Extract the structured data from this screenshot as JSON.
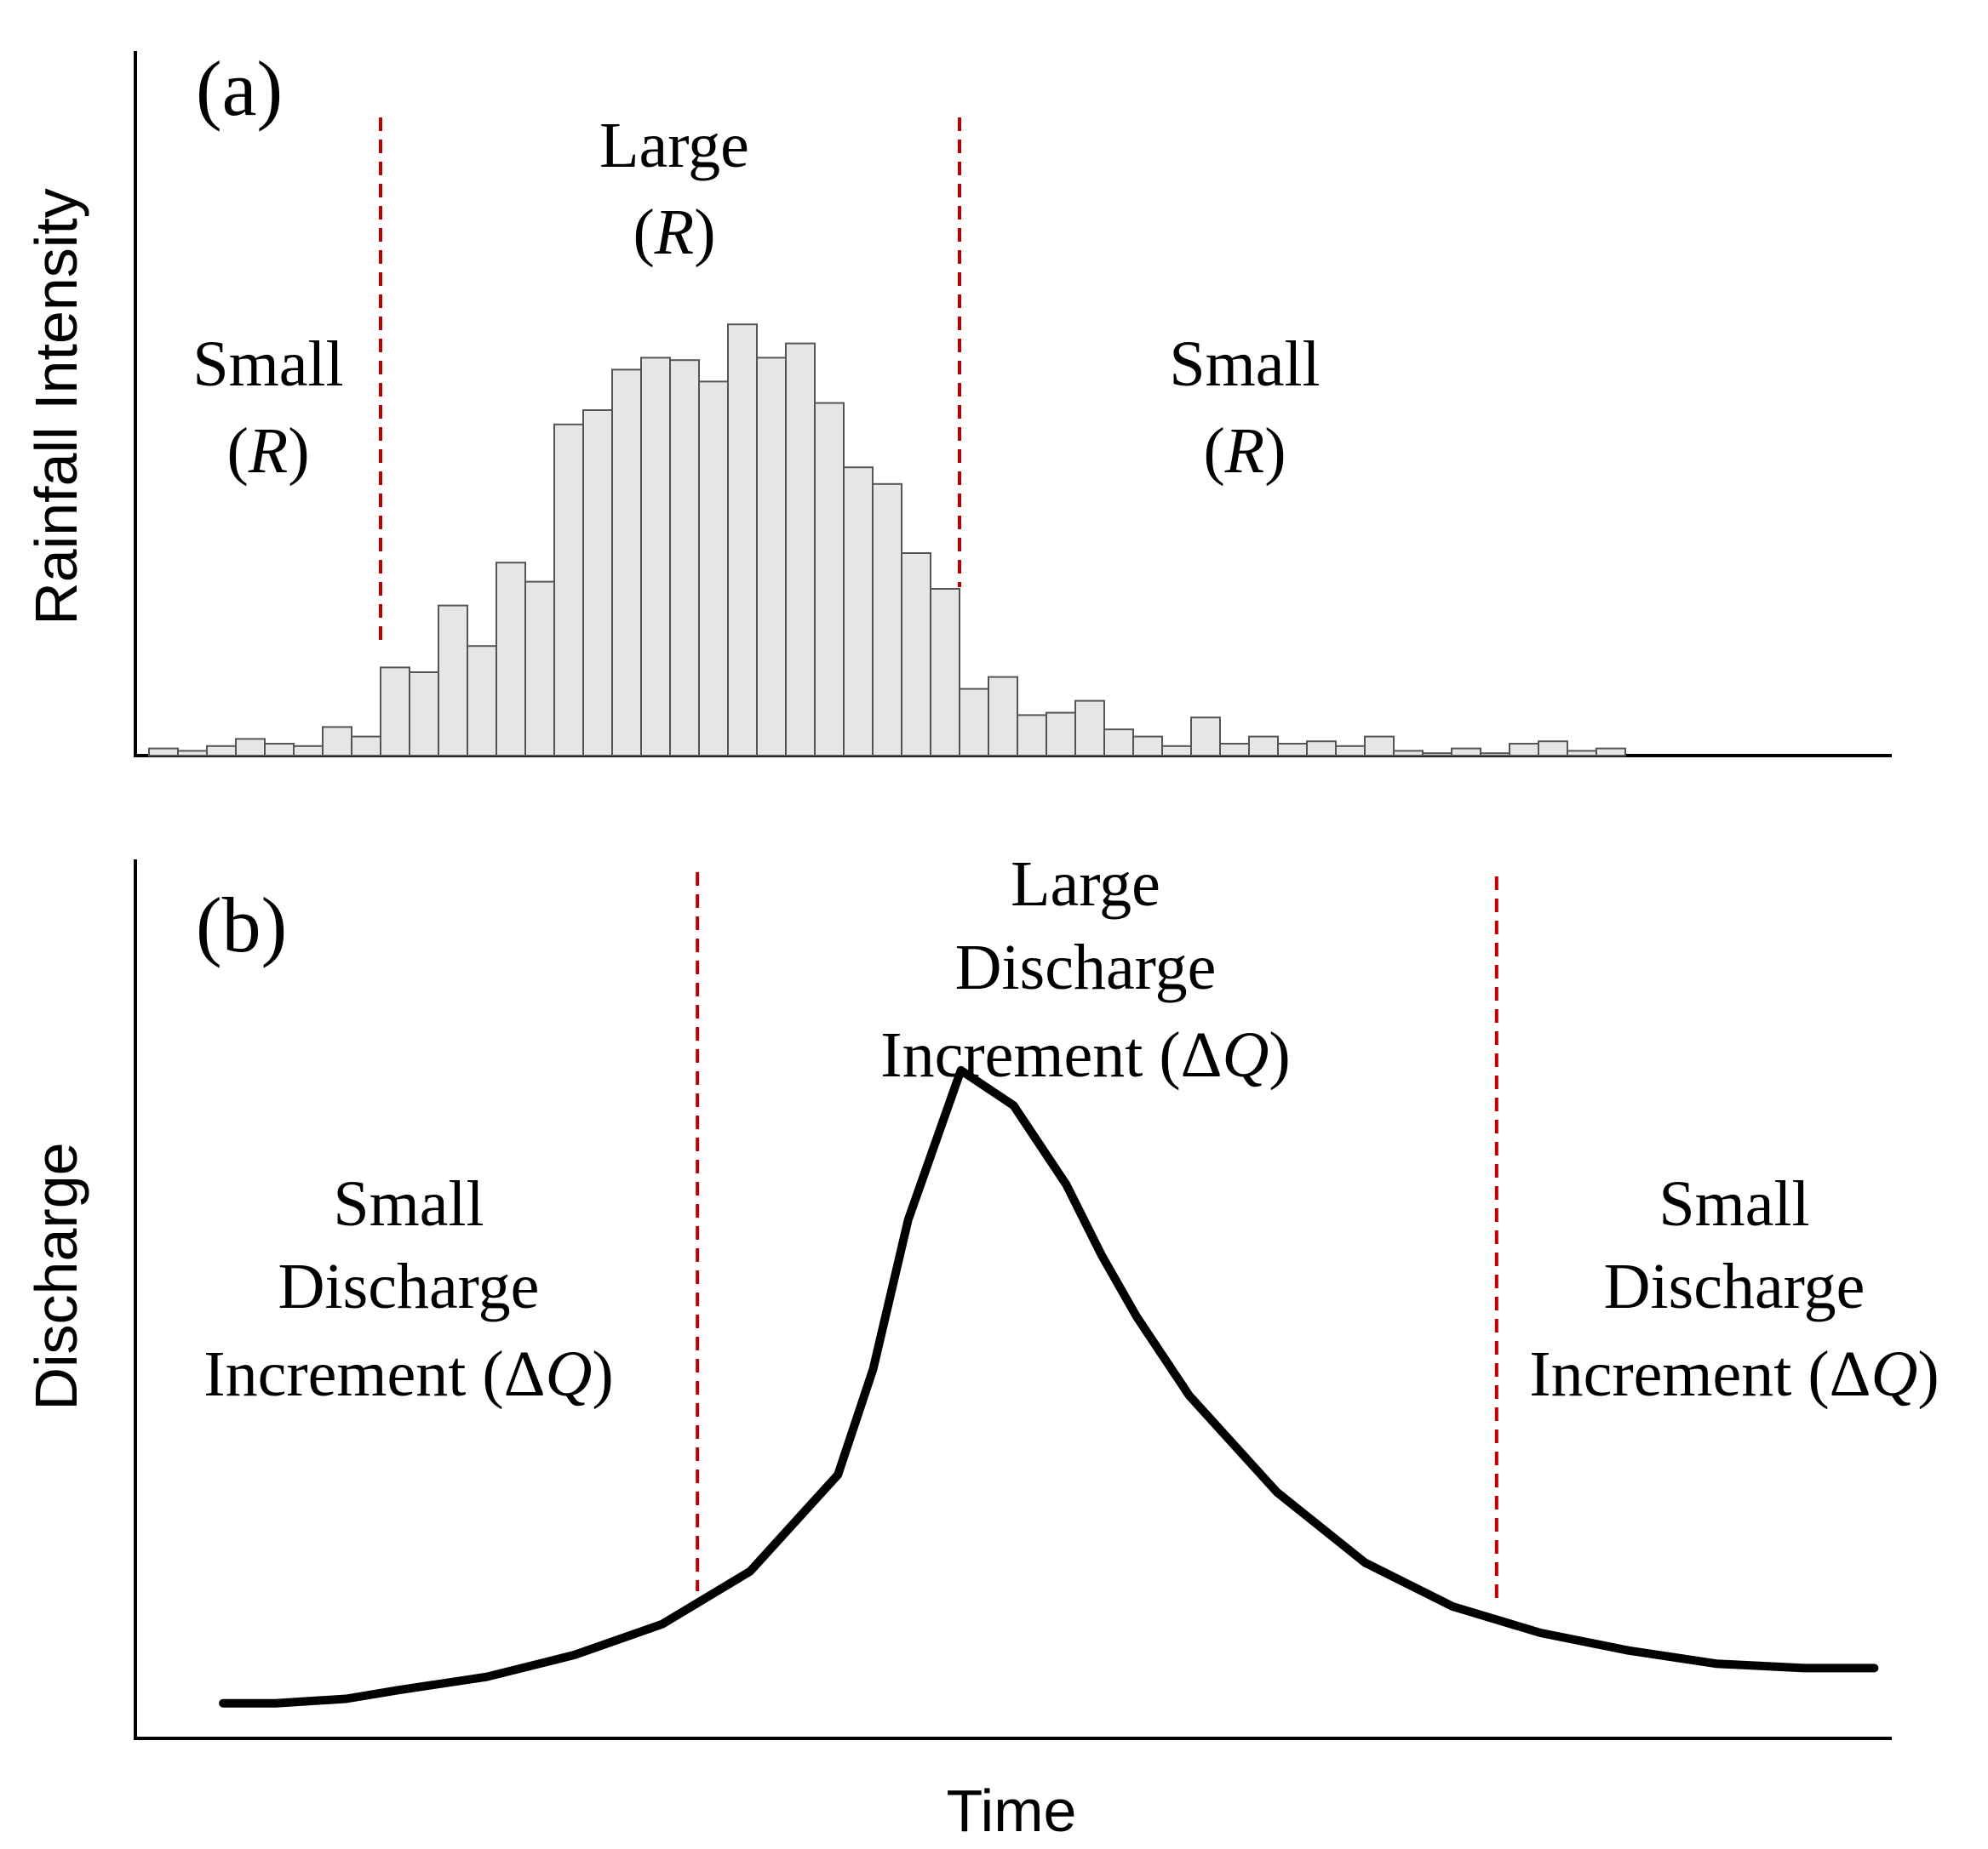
{
  "chart_data": [
    {
      "type": "bar",
      "panel_label": "(a)",
      "ylabel": "Rainfall Intensity",
      "xlabel": "",
      "ylim": [
        0,
        100
      ],
      "values": [
        1.5,
        1,
        2,
        3.5,
        2.5,
        2,
        6,
        4,
        18.5,
        17.5,
        31.5,
        23,
        40.5,
        36.5,
        69.5,
        72.5,
        81,
        83.5,
        83,
        78.5,
        90.5,
        83.5,
        86.5,
        74,
        60.5,
        57,
        42.5,
        35,
        14,
        16.5,
        8.5,
        9,
        11.5,
        5.5,
        4,
        2,
        8,
        2.5,
        4,
        2.5,
        3,
        2,
        4,
        1,
        0.5,
        1.5,
        0.5,
        2.5,
        3,
        1,
        1.5
      ],
      "regions": [
        {
          "label": "Small",
          "sub": "R"
        },
        {
          "label": "Large",
          "sub": "R"
        },
        {
          "label": "Small",
          "sub": "R"
        }
      ],
      "divider_bar_index": [
        8,
        28
      ]
    },
    {
      "type": "line",
      "panel_label": "(b)",
      "ylabel": "Discharge",
      "xlabel": "Time",
      "xlim": [
        0,
        100
      ],
      "ylim": [
        0,
        100
      ],
      "x": [
        5,
        8,
        12,
        15,
        20,
        25,
        30,
        35,
        40,
        42,
        44,
        47,
        50,
        53,
        55,
        57,
        60,
        65,
        70,
        75,
        80,
        85,
        90,
        95,
        99
      ],
      "y": [
        4,
        4,
        4.5,
        5.5,
        7,
        9.5,
        13,
        19,
        30,
        42,
        59,
        76,
        72,
        63,
        55,
        48,
        39,
        28,
        20,
        15,
        12,
        10,
        8.5,
        8,
        8
      ],
      "divider_x": [
        32,
        77.5
      ],
      "regions": [
        {
          "lines": [
            "Small",
            "Discharge",
            "Increment ("
          ],
          "sub": "ΔQ"
        },
        {
          "lines": [
            "Large",
            "Discharge",
            "Increment ("
          ],
          "sub": "ΔQ"
        },
        {
          "lines": [
            "Small",
            "Discharge",
            "Increment ("
          ],
          "sub": "ΔQ"
        }
      ]
    }
  ]
}
